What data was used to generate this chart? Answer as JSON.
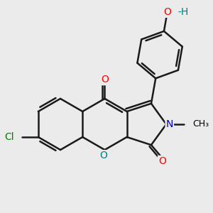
{
  "background_color": "#ebebeb",
  "bond_color": "#1a1a1a",
  "bond_width": 1.8,
  "atom_labels": {
    "O_red": "#ff0000",
    "N_blue": "#0000cd",
    "Cl_green": "#008000",
    "O_teal": "#008080",
    "H_teal": "#008080"
  },
  "figsize": [
    3.0,
    3.0
  ],
  "dpi": 100,
  "xlim": [
    -2.6,
    2.4
  ],
  "ylim": [
    -2.0,
    2.6
  ]
}
